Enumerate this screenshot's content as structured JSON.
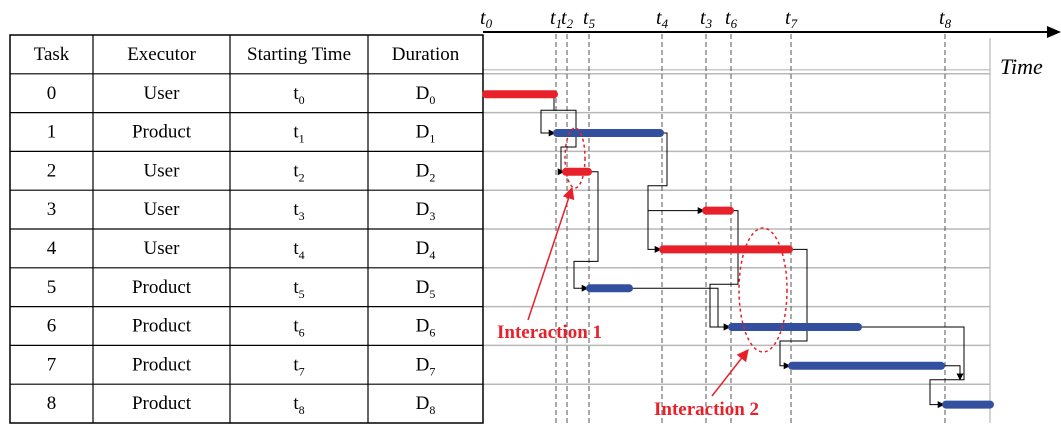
{
  "table": {
    "headers": [
      "Task",
      "Executor",
      "Starting Time",
      "Duration"
    ],
    "rows": [
      {
        "task": "0",
        "executor": "User",
        "start_base": "t",
        "start_sub": "0",
        "dur_base": "D",
        "dur_sub": "0"
      },
      {
        "task": "1",
        "executor": "Product",
        "start_base": "t",
        "start_sub": "1",
        "dur_base": "D",
        "dur_sub": "1"
      },
      {
        "task": "2",
        "executor": "User",
        "start_base": "t",
        "start_sub": "2",
        "dur_base": "D",
        "dur_sub": "2"
      },
      {
        "task": "3",
        "executor": "User",
        "start_base": "t",
        "start_sub": "3",
        "dur_base": "D",
        "dur_sub": "3"
      },
      {
        "task": "4",
        "executor": "User",
        "start_base": "t",
        "start_sub": "4",
        "dur_base": "D",
        "dur_sub": "4"
      },
      {
        "task": "5",
        "executor": "Product",
        "start_base": "t",
        "start_sub": "5",
        "dur_base": "D",
        "dur_sub": "5"
      },
      {
        "task": "6",
        "executor": "Product",
        "start_base": "t",
        "start_sub": "6",
        "dur_base": "D",
        "dur_sub": "6"
      },
      {
        "task": "7",
        "executor": "Product",
        "start_base": "t",
        "start_sub": "7",
        "dur_base": "D",
        "dur_sub": "7"
      },
      {
        "task": "8",
        "executor": "Product",
        "start_base": "t",
        "start_sub": "8",
        "dur_base": "D",
        "dur_sub": "8"
      }
    ]
  },
  "timeline": {
    "axis_label": "Time",
    "markers": [
      {
        "base": "t",
        "sub": "0"
      },
      {
        "base": "t",
        "sub": "1"
      },
      {
        "base": "t",
        "sub": "2"
      },
      {
        "base": "t",
        "sub": "5"
      },
      {
        "base": "t",
        "sub": "4"
      },
      {
        "base": "t",
        "sub": "3"
      },
      {
        "base": "t",
        "sub": "6"
      },
      {
        "base": "t",
        "sub": "7"
      },
      {
        "base": "t",
        "sub": "8"
      }
    ]
  },
  "annotations": {
    "interaction_1": "Interaction 1",
    "interaction_2": "Interaction 2"
  },
  "colors": {
    "user": "#e8202a",
    "product": "#3350a0",
    "annotation": "#e8202a",
    "grid": "#b8b8b8",
    "line": "#000000"
  }
}
